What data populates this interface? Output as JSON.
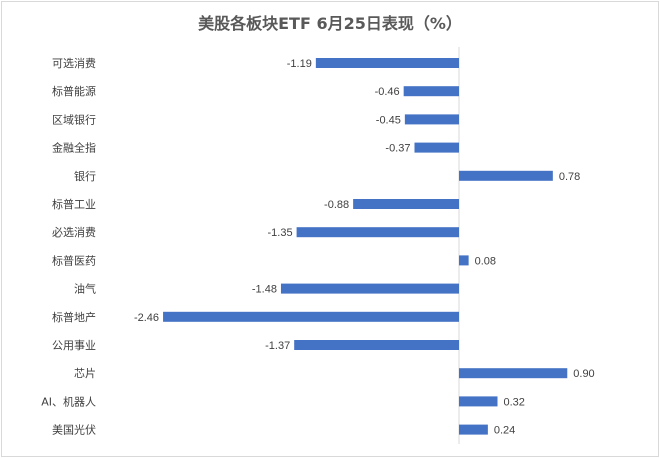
{
  "chart_data": {
    "type": "bar",
    "orientation": "horizontal",
    "title": "美股各板块ETF  6月25日表现（%）",
    "categories": [
      "可选消费",
      "标普能源",
      "区域银行",
      "金融全指",
      "银行",
      "标普工业",
      "必选消费",
      "标普医药",
      "油气",
      "标普地产",
      "公用事业",
      "芯片",
      "AI、机器人",
      "美国光伏"
    ],
    "values": [
      -1.19,
      -0.46,
      -0.45,
      -0.37,
      0.78,
      -0.88,
      -1.35,
      0.08,
      -1.48,
      -2.46,
      -1.37,
      0.9,
      0.32,
      0.24
    ],
    "value_labels": [
      "-1.19",
      "-0.46",
      "-0.45",
      "-0.37",
      "0.78",
      "-0.88",
      "-1.35",
      "0.08",
      "-1.48",
      "-2.46",
      "-1.37",
      "0.90",
      "0.32",
      "0.24"
    ],
    "bar_color": "#4472C4",
    "grid": false,
    "legend": "none"
  }
}
